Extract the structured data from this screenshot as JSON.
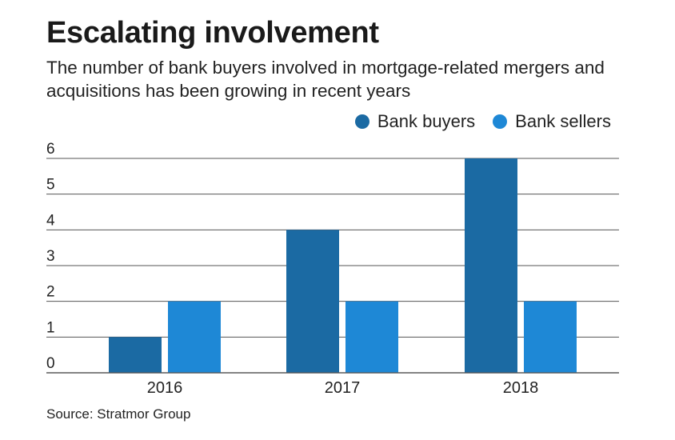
{
  "colors": {
    "bank_buyers": "#1b6aa3",
    "bank_sellers": "#1e88d6",
    "grid": "#555555"
  },
  "chart_data": {
    "type": "bar",
    "title": "Escalating involvement",
    "subtitle": "The number of bank buyers involved in mortgage-related mergers and acquisitions has been growing in recent years",
    "categories": [
      "2016",
      "2017",
      "2018"
    ],
    "series": [
      {
        "name": "Bank buyers",
        "values": [
          1,
          4,
          6
        ]
      },
      {
        "name": "Bank sellers",
        "values": [
          2,
          2,
          2
        ]
      }
    ],
    "ylim": [
      0,
      6
    ],
    "yticks": [
      "0",
      "1",
      "2",
      "3",
      "4",
      "5",
      "6"
    ],
    "legend_position": "top-right",
    "grid": true,
    "source": "Source: Stratmor Group"
  }
}
